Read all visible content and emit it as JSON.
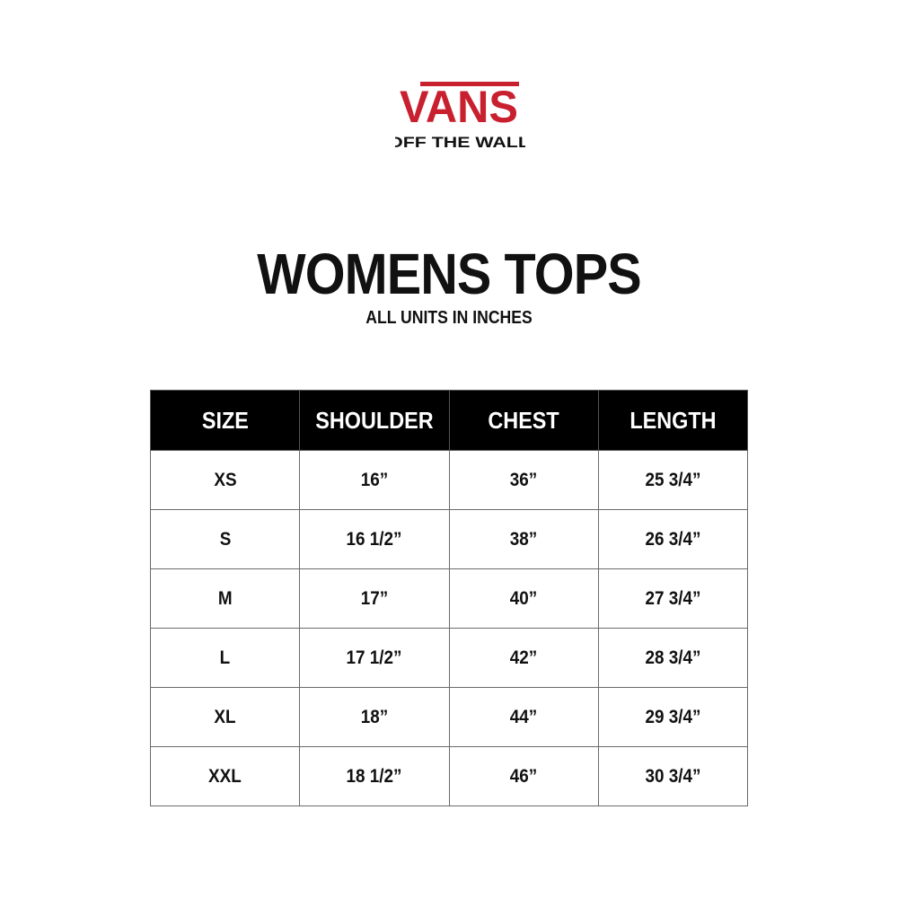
{
  "brand": {
    "logo_text": "VANS",
    "tagline": "\"OFF THE WALL\"",
    "logo_color": "#c8202f"
  },
  "title": "WOMENS TOPS",
  "subtitle": "ALL UNITS IN INCHES",
  "table": {
    "headers": [
      "SIZE",
      "SHOULDER",
      "CHEST",
      "LENGTH"
    ],
    "rows": [
      [
        "XS",
        "16”",
        "36”",
        "25 3/4”"
      ],
      [
        "S",
        "16 1/2”",
        "38”",
        "26 3/4”"
      ],
      [
        "M",
        "17”",
        "40”",
        "27 3/4”"
      ],
      [
        "L",
        "17 1/2”",
        "42”",
        "28 3/4”"
      ],
      [
        "XL",
        "18”",
        "44”",
        "29 3/4”"
      ],
      [
        "XXL",
        "18 1/2”",
        "46”",
        "30 3/4”"
      ]
    ]
  }
}
